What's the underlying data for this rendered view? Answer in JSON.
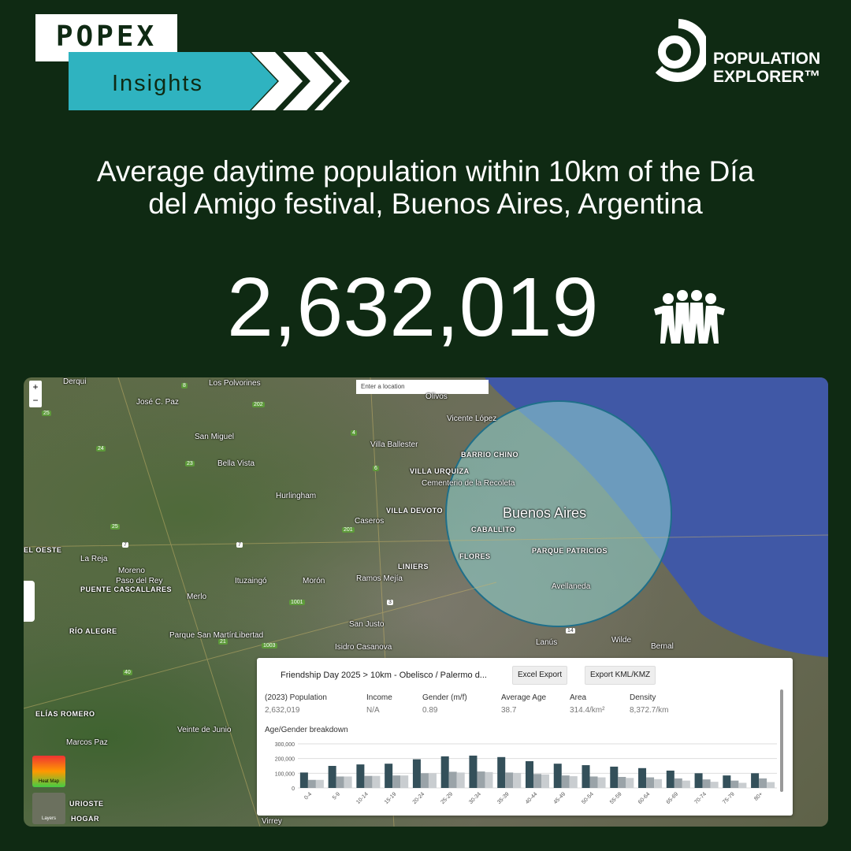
{
  "header": {
    "brand": "POPEX",
    "subtitle": "Insights",
    "logo_line1": "POPULATION",
    "logo_line2": "EXPLORER™"
  },
  "headline": {
    "title": "Average daytime population within 10km of the Día del Amigo festival, Buenos Aires, Argentina",
    "value": "2,632,019"
  },
  "map": {
    "search_placeholder": "Enter a location",
    "zoom_in": "+",
    "zoom_out": "−",
    "heat_map": "Heat Map",
    "layers": "Layers",
    "labels": [
      "Derqui",
      "Los Polvorines",
      "José C. Paz",
      "Olivos",
      "Vicente López",
      "San Miguel",
      "Villa Ballester",
      "Bella Vista",
      "BARRIO CHINO",
      "VILLA URQUIZA",
      "Cementerio de la Recoleta",
      "Hurlingham",
      "Caseros",
      "VILLA DEVOTO",
      "Buenos Aires",
      "CABALLITO",
      "EL OESTE",
      "La Reja",
      "Moreno",
      "LINIERS",
      "FLORES",
      "PARQUE PATRICIOS",
      "Paso del Rey",
      "PUENTE CASCALLARES",
      "Merlo",
      "Ituzaingó",
      "Morón",
      "Ramos Mejía",
      "Avellaneda",
      "San Justo",
      "RÍO ALEGRE",
      "Parque San Martín",
      "Libertad",
      "Isidro Casanova",
      "Lanús",
      "Wilde",
      "Bernal",
      "ELÍAS ROMERO",
      "Marcos Paz",
      "Veinte de Junio",
      "URIOSTE",
      "HOGAR",
      "Virrey"
    ],
    "roads": [
      "8",
      "25",
      "202",
      "4",
      "24",
      "23",
      "6",
      "25",
      "201",
      "7",
      "7",
      "1001",
      "3",
      "40",
      "21",
      "1003",
      "14"
    ]
  },
  "panel": {
    "breadcrumb": "Friendship Day 2025 > 10km - Obelisco / Palermo d...",
    "excel": "Excel Export",
    "kml": "Export KML/KMZ",
    "stats": [
      {
        "label": "(2023) Population",
        "value": "2,632,019"
      },
      {
        "label": "Income",
        "value": "N/A"
      },
      {
        "label": "Gender (m/f)",
        "value": "0.89"
      },
      {
        "label": "Average Age",
        "value": "38.7"
      },
      {
        "label": "Area",
        "value": "314.4/km²"
      },
      {
        "label": "Density",
        "value": "8,372.7/km"
      }
    ],
    "breakdown_title": "Age/Gender breakdown"
  },
  "chart_data": {
    "type": "bar",
    "categories": [
      "0-4",
      "5-9",
      "10-14",
      "15-19",
      "20-24",
      "25-29",
      "30-34",
      "35-39",
      "40-44",
      "45-49",
      "50-54",
      "55-59",
      "60-64",
      "65-69",
      "70-74",
      "75-79",
      "80+"
    ],
    "series": [
      {
        "color": "#34505a",
        "values": [
          105000,
          150000,
          160000,
          165000,
          195000,
          215000,
          220000,
          210000,
          182000,
          165000,
          155000,
          145000,
          135000,
          118000,
          100000,
          85000,
          100000
        ]
      },
      {
        "color": "#9aa3a8",
        "values": [
          55000,
          78000,
          82000,
          85000,
          100000,
          110000,
          112000,
          105000,
          95000,
          85000,
          78000,
          75000,
          72000,
          65000,
          58000,
          50000,
          65000
        ]
      },
      {
        "color": "#c9cdd0",
        "values": [
          55000,
          78000,
          82000,
          85000,
          100000,
          105000,
          108000,
          102000,
          92000,
          80000,
          72000,
          68000,
          60000,
          50000,
          42000,
          35000,
          40000
        ]
      }
    ],
    "ylim": [
      0,
      300000
    ],
    "yticks": [
      0,
      {
        "value": 100000,
        "label": "100,000"
      },
      {
        "value": 200000,
        "label": "200,000"
      },
      {
        "value": 300000,
        "label": "300,000"
      }
    ],
    "grid": true
  }
}
